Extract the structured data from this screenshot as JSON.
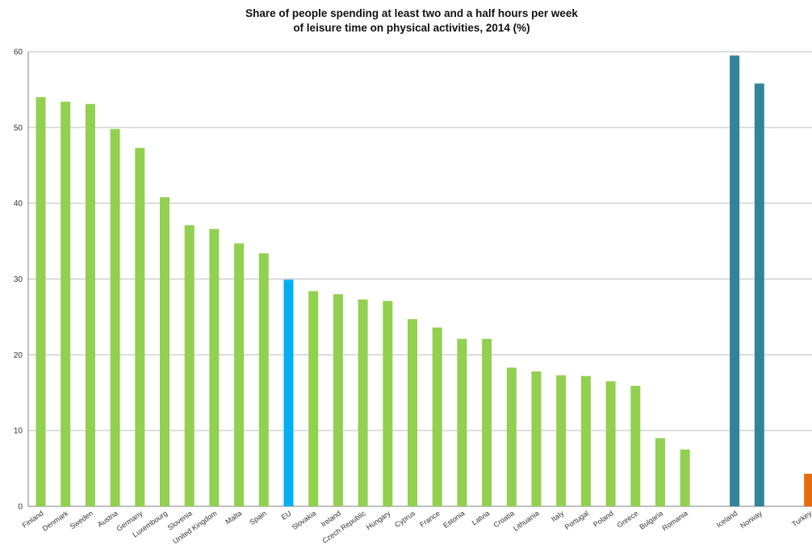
{
  "chart_data": {
    "type": "bar",
    "title_line1": "Share of people spending at least two and a half hours per week",
    "title_line2": "of leisure time on physical activities, 2014 (%)",
    "xlabel": "",
    "ylabel": "",
    "ylim": [
      0,
      60
    ],
    "yticks": [
      0,
      10,
      20,
      30,
      40,
      50,
      60
    ],
    "grid": true,
    "legend": "none",
    "colors": {
      "member": "#92d050",
      "eu": "#00b0f0",
      "efta": "#31849b",
      "candidate": "#e46c0a",
      "grid": "#bfbfbf",
      "axis": "#808080"
    },
    "bars": [
      {
        "label": "Finland",
        "value": 54.0,
        "group": "member",
        "slot": 0
      },
      {
        "label": "Denmark",
        "value": 53.4,
        "group": "member",
        "slot": 1
      },
      {
        "label": "Sweden",
        "value": 53.1,
        "group": "member",
        "slot": 2
      },
      {
        "label": "Austria",
        "value": 49.8,
        "group": "member",
        "slot": 3
      },
      {
        "label": "Germany",
        "value": 47.3,
        "group": "member",
        "slot": 4
      },
      {
        "label": "Luxembourg",
        "value": 40.8,
        "group": "member",
        "slot": 5
      },
      {
        "label": "Slovenia",
        "value": 37.1,
        "group": "member",
        "slot": 6
      },
      {
        "label": "United Kingdom",
        "value": 36.6,
        "group": "member",
        "slot": 7
      },
      {
        "label": "Malta",
        "value": 34.7,
        "group": "member",
        "slot": 8
      },
      {
        "label": "Spain",
        "value": 33.4,
        "group": "member",
        "slot": 9
      },
      {
        "label": "EU",
        "value": 29.9,
        "group": "eu",
        "slot": 10
      },
      {
        "label": "Slovakia",
        "value": 28.4,
        "group": "member",
        "slot": 11
      },
      {
        "label": "Ireland",
        "value": 28.0,
        "group": "member",
        "slot": 12
      },
      {
        "label": "Czech Republic",
        "value": 27.3,
        "group": "member",
        "slot": 13
      },
      {
        "label": "Hungary",
        "value": 27.1,
        "group": "member",
        "slot": 14
      },
      {
        "label": "Cyprus",
        "value": 24.7,
        "group": "member",
        "slot": 15
      },
      {
        "label": "France",
        "value": 23.6,
        "group": "member",
        "slot": 16
      },
      {
        "label": "Estonia",
        "value": 22.1,
        "group": "member",
        "slot": 17
      },
      {
        "label": "Latvia",
        "value": 22.1,
        "group": "member",
        "slot": 18
      },
      {
        "label": "Croatia",
        "value": 18.3,
        "group": "member",
        "slot": 19
      },
      {
        "label": "Lithuania",
        "value": 17.8,
        "group": "member",
        "slot": 20
      },
      {
        "label": "Italy",
        "value": 17.3,
        "group": "member",
        "slot": 21
      },
      {
        "label": "Portugal",
        "value": 17.2,
        "group": "member",
        "slot": 22
      },
      {
        "label": "Poland",
        "value": 16.5,
        "group": "member",
        "slot": 23
      },
      {
        "label": "Greece",
        "value": 15.9,
        "group": "member",
        "slot": 24
      },
      {
        "label": "Bulgaria",
        "value": 9.0,
        "group": "member",
        "slot": 25
      },
      {
        "label": "Romania",
        "value": 7.5,
        "group": "member",
        "slot": 26
      },
      {
        "label": "Iceland",
        "value": 59.5,
        "group": "efta",
        "slot": 28
      },
      {
        "label": "Norway",
        "value": 55.8,
        "group": "efta",
        "slot": 29
      },
      {
        "label": "Turkey",
        "value": 4.3,
        "group": "candidate",
        "slot": 31
      }
    ]
  }
}
